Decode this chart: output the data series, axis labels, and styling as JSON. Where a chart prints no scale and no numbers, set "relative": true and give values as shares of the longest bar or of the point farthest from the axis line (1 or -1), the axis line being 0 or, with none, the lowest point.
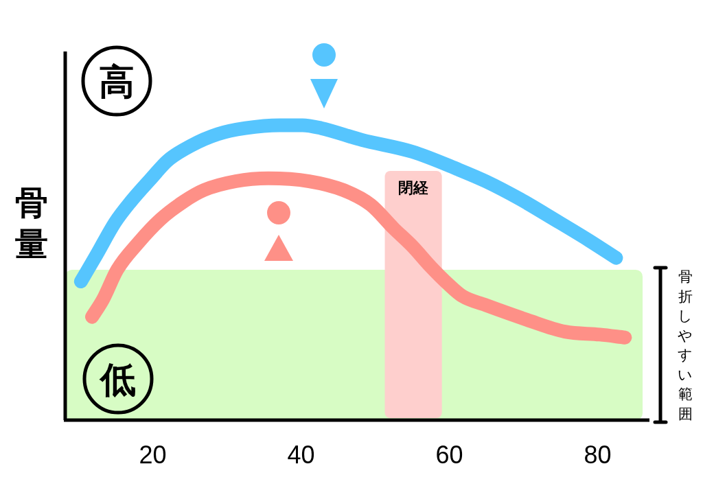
{
  "chart_data": {
    "type": "line",
    "relative": true,
    "ylabel": "骨量",
    "xlim": [
      8,
      87
    ],
    "xticks": [
      20,
      40,
      60,
      80
    ],
    "tick_labels": "x",
    "line_style": "solid",
    "series": [
      {
        "color": "#56c5fe",
        "x": [
          10.3,
          12.4,
          14.9,
          17.0,
          19.8,
          22.0,
          25.1,
          28.8,
          32.5,
          37.1,
          40.2,
          42.7,
          48.2,
          55.0,
          61.2,
          64.9,
          69.5,
          74.2,
          78.8,
          82.5
        ],
        "values": [
          0.47,
          0.56,
          0.67,
          0.74,
          0.82,
          0.88,
          0.93,
          0.97,
          0.99,
          1.0,
          1.0,
          0.99,
          0.95,
          0.91,
          0.85,
          0.81,
          0.75,
          0.68,
          0.61,
          0.55
        ]
      },
      {
        "color": "#fe9087",
        "x": [
          11.8,
          13.3,
          15.2,
          18.0,
          21.0,
          24.1,
          26.9,
          31.2,
          35.6,
          41.1,
          45.7,
          49.4,
          52.5,
          55.0,
          57.5,
          59.9,
          61.8,
          64.9,
          70.5,
          75.6,
          80.3,
          83.7
        ],
        "values": [
          0.35,
          0.41,
          0.51,
          0.6,
          0.68,
          0.74,
          0.78,
          0.81,
          0.82,
          0.81,
          0.78,
          0.73,
          0.65,
          0.59,
          0.52,
          0.46,
          0.42,
          0.39,
          0.34,
          0.3,
          0.29,
          0.28
        ]
      }
    ],
    "bands": [
      {
        "axis": "y",
        "from": 0,
        "to": 0.51,
        "label": "骨折しやすい範囲",
        "color": "#d7fcc4"
      },
      {
        "axis": "x",
        "from": 51.3,
        "to": 59.0,
        "label": "閉経",
        "color": "#fecfcd"
      }
    ],
    "annotations": [
      "高",
      "低"
    ]
  }
}
